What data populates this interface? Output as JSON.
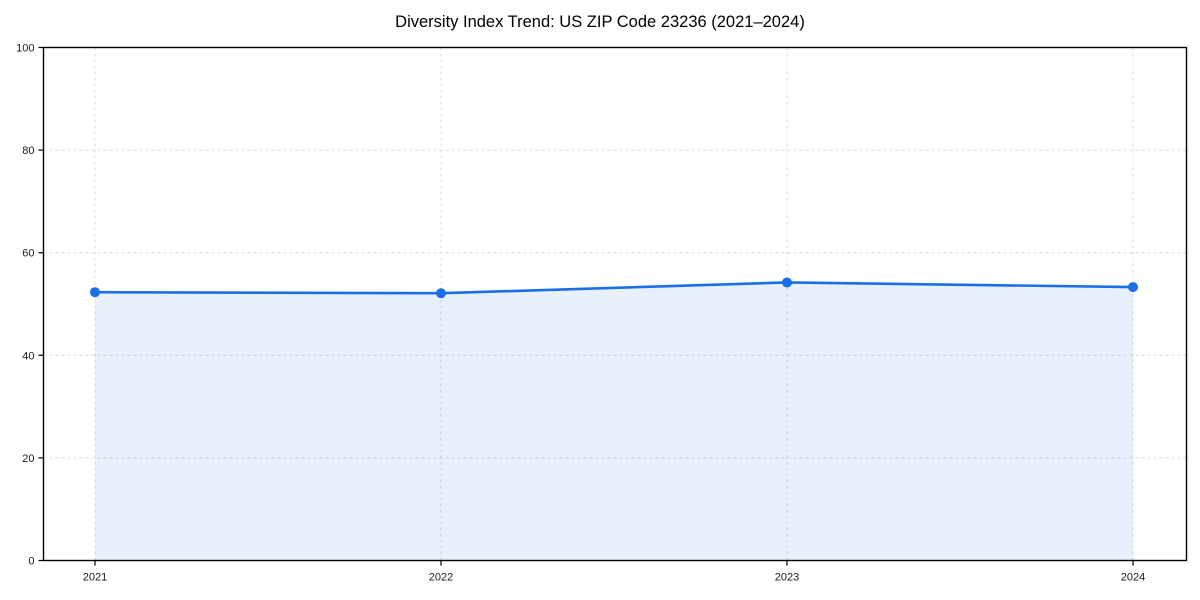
{
  "chart_data": {
    "type": "area",
    "title": "Diversity Index Trend: US ZIP Code 23236 (2021–2024)",
    "x": [
      "2021",
      "2022",
      "2023",
      "2024"
    ],
    "series": [
      {
        "name": "Diversity Index",
        "values": [
          52.3,
          52.1,
          54.2,
          53.3
        ]
      }
    ],
    "xlabel": "",
    "ylabel": "",
    "ylim": [
      0,
      100
    ],
    "yticks": [
      0,
      20,
      40,
      60,
      80,
      100
    ],
    "xticklabels": [
      "2021",
      "2022",
      "2023",
      "2024"
    ],
    "grid": "dashed",
    "legend": "none",
    "marker": "circle",
    "colors": {
      "line": "#1a6fe8",
      "marker": "#1a6fe8",
      "fill": "rgba(26,111,232,0.10)",
      "grid": "#dcdcdc",
      "axis": "#000000",
      "tick_label": "#1a1a1a",
      "title": "#000000"
    }
  }
}
